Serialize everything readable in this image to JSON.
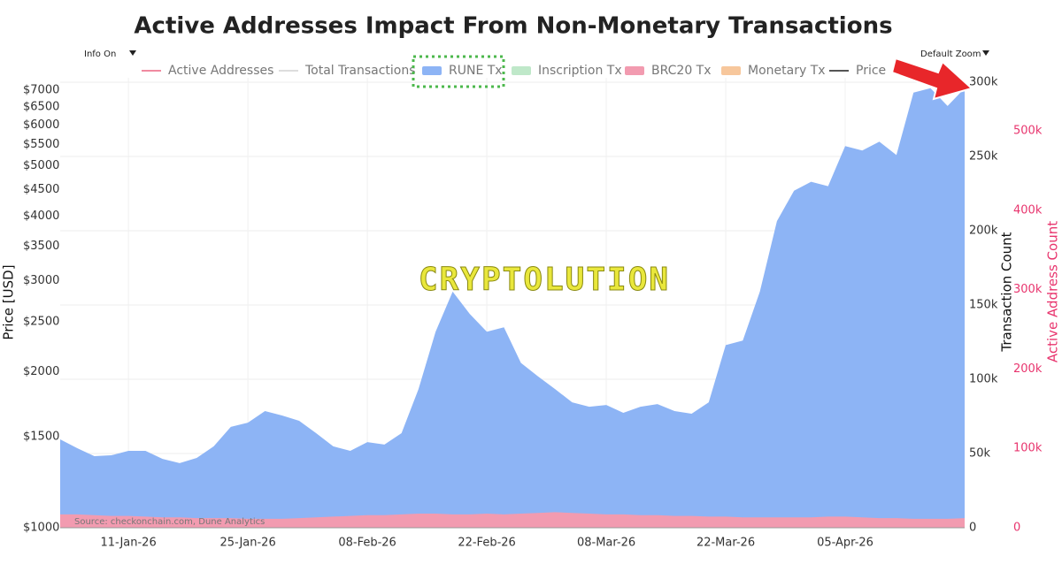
{
  "chart_data": {
    "type": "area",
    "title": "Active Addresses Impact From Non-Monetary Transactions",
    "controls": [
      "Info On",
      "Default Zoom"
    ],
    "watermark": "CRYPTOLUTION",
    "source": "Source: checkonchain.com, Dune Analytics",
    "ylabel": "Price [USD]",
    "y2label": "Transaction Count",
    "y3label": "Active Address Count",
    "categories": [
      null,
      null,
      null,
      null,
      "11-Jan-26",
      null,
      null,
      null,
      null,
      null,
      null,
      "25-Jan-26",
      null,
      null,
      null,
      null,
      null,
      null,
      "08-Feb-26",
      null,
      null,
      null,
      null,
      null,
      null,
      "22-Feb-26",
      null,
      null,
      null,
      null,
      null,
      null,
      "08-Mar-26",
      null,
      null,
      null,
      null,
      null,
      null,
      "22-Mar-26",
      null,
      null,
      null,
      null,
      null,
      null,
      "05-Apr-26",
      null,
      null,
      null,
      null,
      null,
      null,
      null
    ],
    "log_y": true,
    "ylim": [
      1000,
      7400
    ],
    "yticks": [
      {
        "value": 1000,
        "label": "$1000"
      },
      {
        "value": 1500,
        "label": "$1500"
      },
      {
        "value": 2000,
        "label": "$2000"
      },
      {
        "value": 2500,
        "label": "$2500"
      },
      {
        "value": 3000,
        "label": "$3000"
      },
      {
        "value": 3500,
        "label": "$3500"
      },
      {
        "value": 4000,
        "label": "$4000"
      },
      {
        "value": 4500,
        "label": "$4500"
      },
      {
        "value": 5000,
        "label": "$5000"
      },
      {
        "value": 5500,
        "label": "$5500"
      },
      {
        "value": 6000,
        "label": "$6000"
      },
      {
        "value": 6500,
        "label": "$6500"
      },
      {
        "value": 7000,
        "label": "$7000"
      }
    ],
    "y2lim": [
      0,
      303000
    ],
    "y2ticks": [
      0,
      {
        "value": 50000,
        "label": "50k"
      },
      {
        "value": 100000,
        "label": "100k"
      },
      {
        "value": 150000,
        "label": "150k"
      },
      {
        "value": 200000,
        "label": "200k"
      },
      {
        "value": 250000,
        "label": "250k"
      },
      {
        "value": 300000,
        "label": "300k"
      }
    ],
    "y3lim": [
      0,
      567000
    ],
    "y3ticks": [
      0,
      {
        "value": 100000,
        "label": "100k"
      },
      {
        "value": 200000,
        "label": "200k"
      },
      {
        "value": 300000,
        "label": "300k"
      },
      {
        "value": 400000,
        "label": "400k"
      },
      {
        "value": 500000,
        "label": "500k"
      }
    ],
    "grid": true,
    "series": [
      {
        "name": "Active Addresses",
        "color": "#f08aa0",
        "style": "line",
        "visible": false
      },
      {
        "name": "Total Transactions",
        "color": "#dddddd",
        "style": "line",
        "visible": false
      },
      {
        "name": "RUNE Tx",
        "color": "#8db4f5",
        "style": "area",
        "axis": "y2",
        "values": [
          59500,
          53600,
          48200,
          48800,
          51800,
          51800,
          46400,
          43500,
          47000,
          54800,
          67900,
          70800,
          78600,
          75600,
          72000,
          63700,
          54800,
          51800,
          57700,
          56000,
          63700,
          93400,
          132000,
          159000,
          144000,
          132000,
          135000,
          111000,
          102000,
          93400,
          84500,
          81500,
          82700,
          77400,
          81500,
          83300,
          78600,
          76800,
          84500,
          123000,
          126000,
          159000,
          206500,
          227000,
          233000,
          230000,
          257000,
          254000,
          260000,
          251000,
          293000,
          296000,
          284000,
          296000
        ]
      },
      {
        "name": "Inscription Tx",
        "color": "#bfe8c9",
        "style": "area",
        "visible": false
      },
      {
        "name": "BRC20 Tx",
        "color": "#f29bb0",
        "style": "area",
        "axis": "y2",
        "values": [
          9000,
          9000,
          8500,
          8000,
          8000,
          7500,
          7000,
          7000,
          6500,
          6500,
          6500,
          6000,
          6000,
          6000,
          6500,
          7000,
          7500,
          8000,
          8500,
          8500,
          9000,
          9500,
          9500,
          9000,
          9000,
          9500,
          9000,
          9500,
          10000,
          10500,
          10000,
          9500,
          9000,
          9000,
          8500,
          8500,
          8000,
          8000,
          7500,
          7500,
          7000,
          7000,
          7000,
          7000,
          7000,
          7500,
          7500,
          7000,
          6500,
          6500,
          6000,
          6000,
          6000,
          6500
        ]
      },
      {
        "name": "Monetary Tx",
        "color": "#f7c79c",
        "style": "area",
        "visible": false
      },
      {
        "name": "Price",
        "color": "#555555",
        "style": "line",
        "visible": false
      }
    ]
  }
}
